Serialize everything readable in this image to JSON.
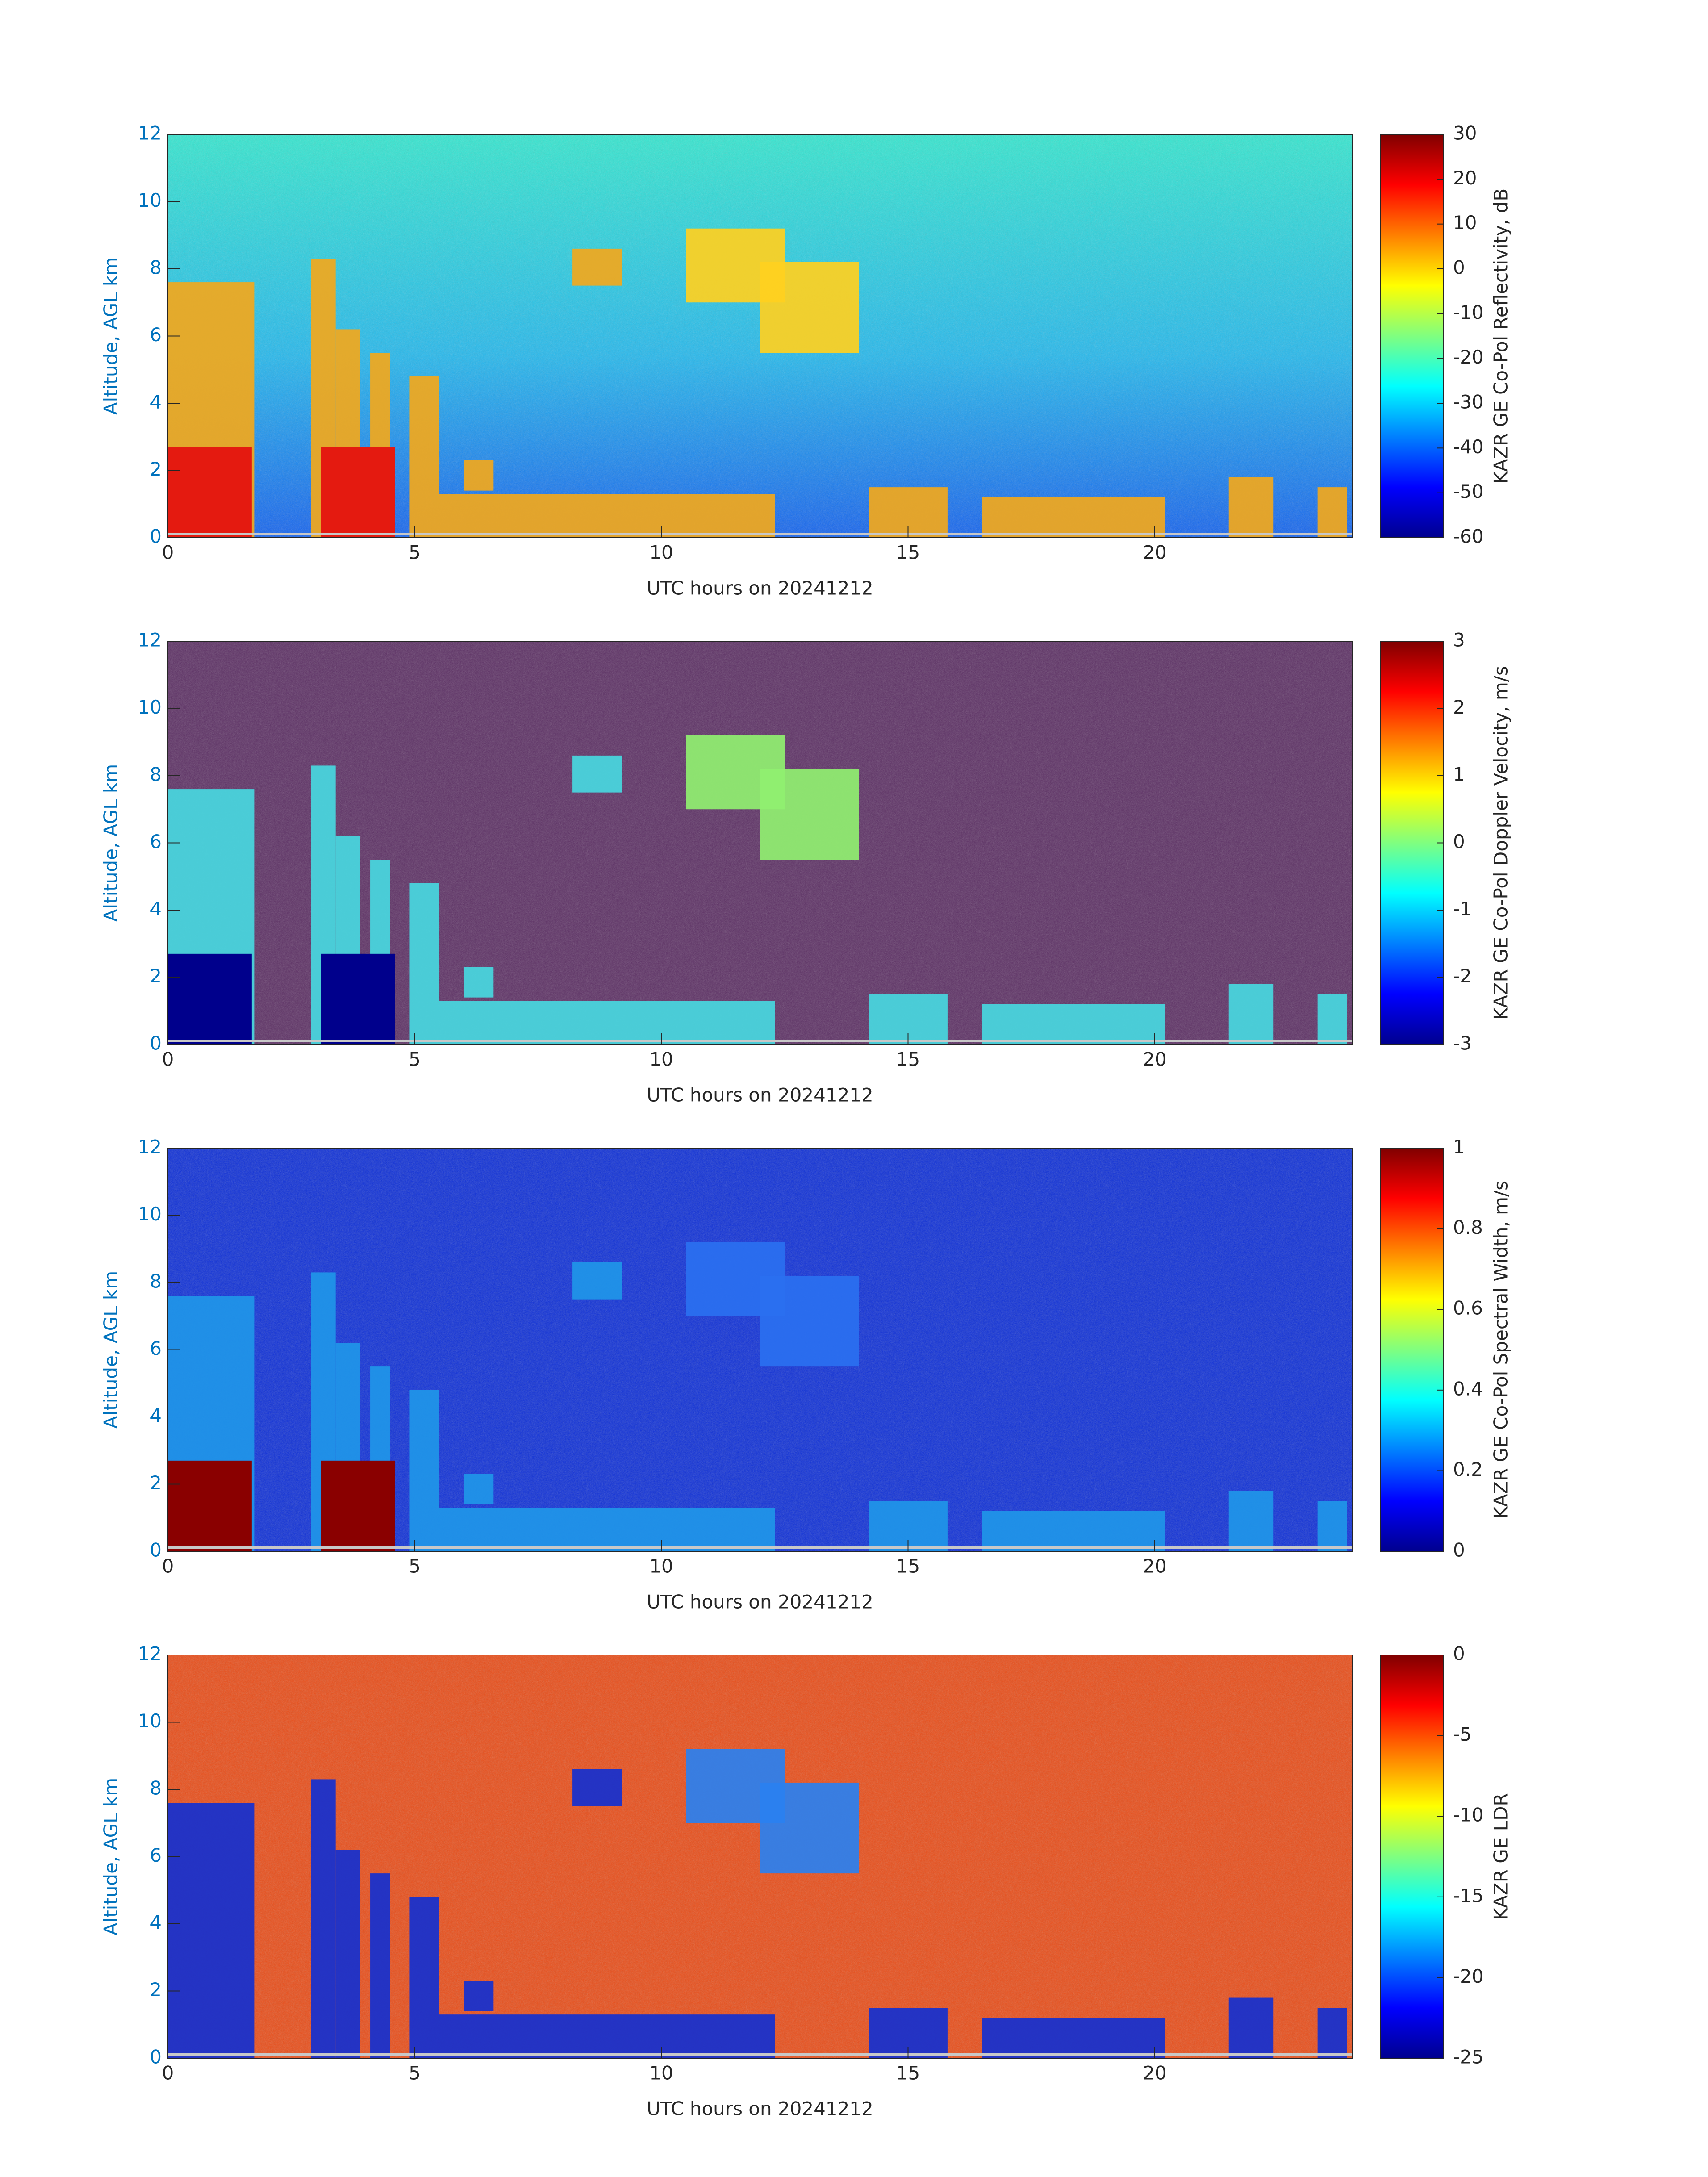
{
  "chart_data": [
    {
      "type": "heatmap",
      "xlabel": "UTC hours on 20241212",
      "ylabel": "Altitude, AGL km",
      "xlim": [
        0,
        24
      ],
      "xticks": [
        0,
        5,
        10,
        15,
        20
      ],
      "ylim": [
        0,
        12
      ],
      "yticks": [
        0,
        2,
        4,
        6,
        8,
        10,
        12
      ],
      "colorbar_label": "KAZR GE Co-Pol Reflectivity, dB",
      "clim": [
        -60,
        30
      ],
      "cticks": [
        -60,
        -50,
        -40,
        -30,
        -20,
        -10,
        0,
        10,
        20,
        30
      ]
    },
    {
      "type": "heatmap",
      "xlabel": "UTC hours on 20241212",
      "ylabel": "Altitude, AGL km",
      "xlim": [
        0,
        24
      ],
      "xticks": [
        0,
        5,
        10,
        15,
        20
      ],
      "ylim": [
        0,
        12
      ],
      "yticks": [
        0,
        2,
        4,
        6,
        8,
        10,
        12
      ],
      "colorbar_label": "KAZR GE Co-Pol Doppler Velocity, m/s",
      "clim": [
        -3,
        3
      ],
      "cticks": [
        -3,
        -2,
        -1,
        0,
        1,
        2,
        3
      ]
    },
    {
      "type": "heatmap",
      "xlabel": "UTC hours on 20241212",
      "ylabel": "Altitude, AGL km",
      "xlim": [
        0,
        24
      ],
      "xticks": [
        0,
        5,
        10,
        15,
        20
      ],
      "ylim": [
        0,
        12
      ],
      "yticks": [
        0,
        2,
        4,
        6,
        8,
        10,
        12
      ],
      "colorbar_label": "KAZR GE Co-Pol Spectral Width, m/s",
      "clim": [
        0,
        1
      ],
      "cticks": [
        0,
        0.2,
        0.4,
        0.6,
        0.8,
        1
      ]
    },
    {
      "type": "heatmap",
      "xlabel": "UTC hours on 20241212",
      "ylabel": "Altitude, AGL km",
      "xlim": [
        0,
        24
      ],
      "xticks": [
        0,
        5,
        10,
        15,
        20
      ],
      "ylim": [
        0,
        12
      ],
      "yticks": [
        0,
        2,
        4,
        6,
        8,
        10,
        12
      ],
      "colorbar_label": "KAZR GE LDR",
      "clim": [
        -25,
        0
      ],
      "cticks": [
        -25,
        -20,
        -15,
        -10,
        -5,
        0
      ]
    }
  ]
}
